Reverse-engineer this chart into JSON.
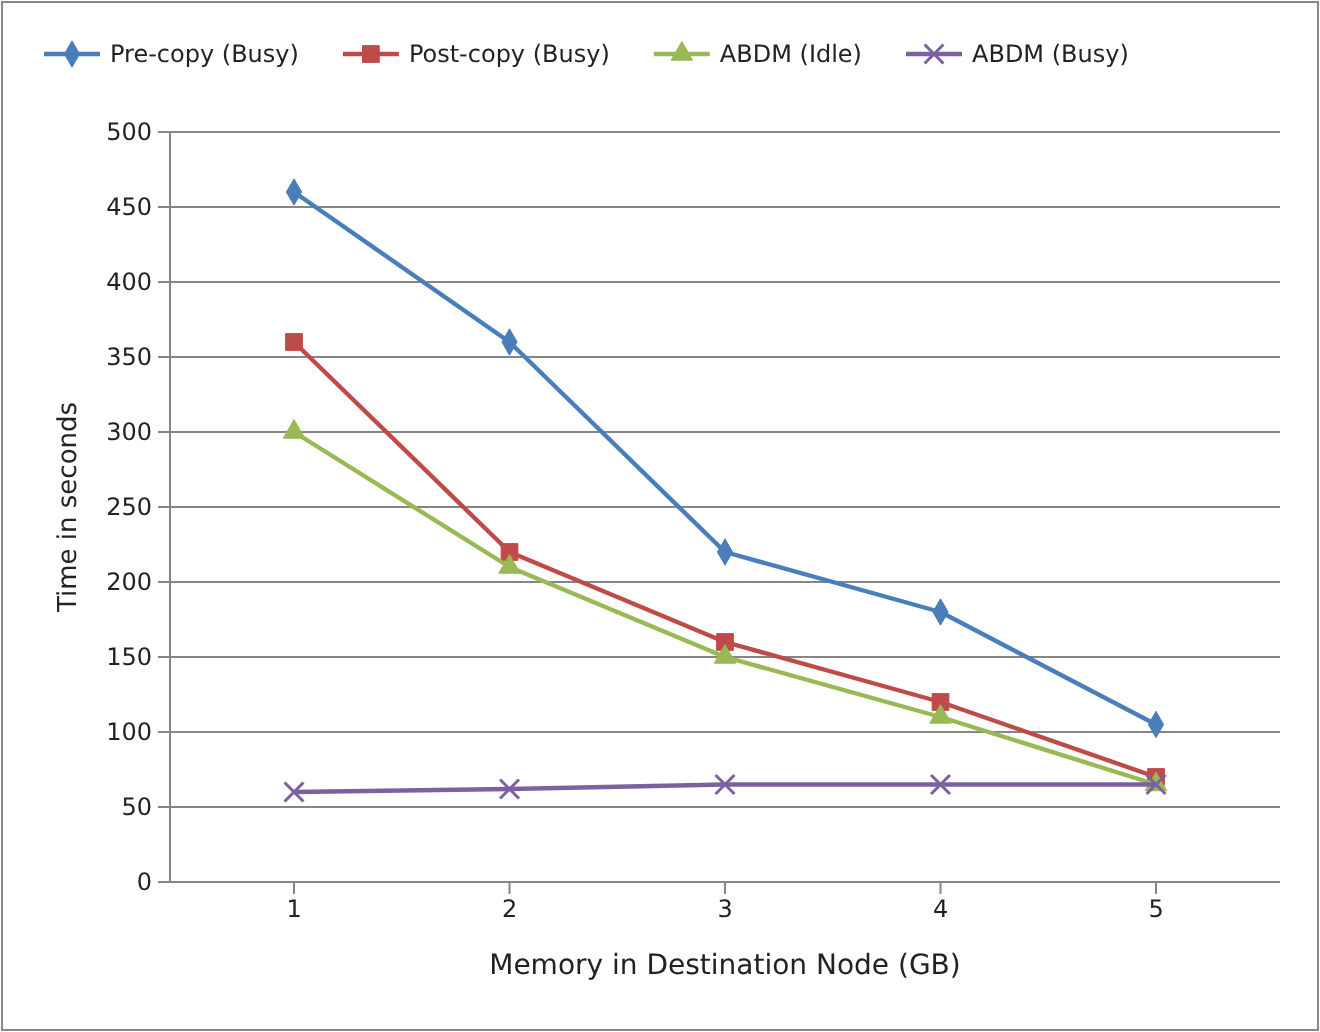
{
  "chart_data": {
    "type": "line",
    "xlabel": "Memory in Destination Node (GB)",
    "ylabel": "Time in seconds",
    "categories": [
      "1",
      "2",
      "3",
      "4",
      "5"
    ],
    "series": [
      {
        "name": "Pre-copy (Busy)",
        "color": "#4a7ebb",
        "marker": "diamond",
        "values": [
          460,
          360,
          220,
          180,
          105
        ]
      },
      {
        "name": "Post-copy (Busy)",
        "color": "#be4b48",
        "marker": "square",
        "values": [
          360,
          220,
          160,
          120,
          70
        ]
      },
      {
        "name": "ABDM (Idle)",
        "color": "#98b954",
        "marker": "triangle",
        "values": [
          300,
          210,
          150,
          110,
          65
        ]
      },
      {
        "name": "ABDM (Busy)",
        "color": "#7d60a0",
        "marker": "cross",
        "values": [
          60,
          62,
          65,
          65,
          65
        ]
      }
    ],
    "ylim": [
      0,
      500
    ],
    "yticks": [
      0,
      50,
      100,
      150,
      200,
      250,
      300,
      350,
      400,
      450,
      500
    ],
    "grid": "y",
    "legend": "top"
  }
}
